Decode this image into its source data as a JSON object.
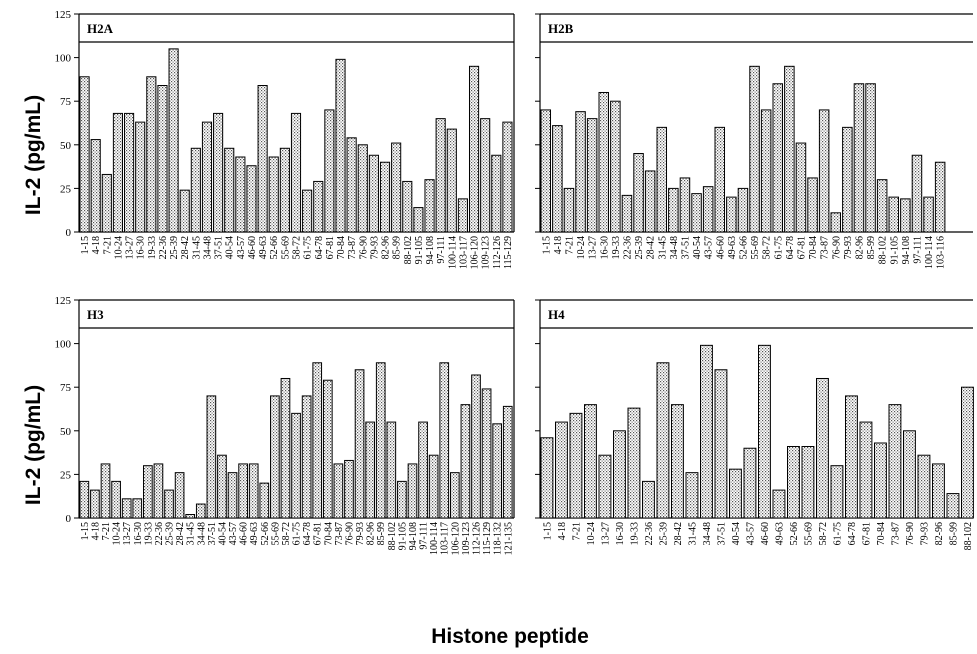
{
  "chart_data": {
    "type": "bar",
    "xlabel": "Histone peptide",
    "ylabel": "IL-2 (pg/mL)",
    "ylim": [
      0,
      125
    ],
    "yticks": [
      0,
      25,
      50,
      75,
      100,
      125
    ],
    "grid": false,
    "panels": [
      {
        "title": "H2A",
        "categories": [
          "1-15",
          "4-18",
          "7-21",
          "10-24",
          "13-27",
          "16-30",
          "19-33",
          "22-36",
          "25-39",
          "28-42",
          "31-45",
          "34-48",
          "37-51",
          "40-54",
          "43-57",
          "46-60",
          "49-63",
          "52-66",
          "55-69",
          "58-72",
          "61-75",
          "64-78",
          "67-81",
          "70-84",
          "73-87",
          "76-90",
          "79-93",
          "82-96",
          "85-99",
          "88-102",
          "91-105",
          "94-108",
          "97-111",
          "100-114",
          "103-117",
          "106-120",
          "109-123",
          "112-126",
          "115-129"
        ],
        "values": [
          89,
          53,
          33,
          68,
          68,
          63,
          89,
          84,
          105,
          24,
          48,
          63,
          68,
          48,
          43,
          38,
          84,
          43,
          48,
          68,
          24,
          29,
          70,
          99,
          54,
          50,
          44,
          40,
          51,
          29,
          14,
          30,
          65,
          59,
          19,
          95,
          65,
          44,
          63
        ]
      },
      {
        "title": "H2B",
        "categories": [
          "1-15",
          "4-18",
          "7-21",
          "10-24",
          "13-27",
          "16-30",
          "19-33",
          "22-36",
          "25-39",
          "28-42",
          "31-45",
          "34-48",
          "37-51",
          "40-54",
          "43-57",
          "46-60",
          "49-63",
          "52-66",
          "55-69",
          "58-72",
          "61-75",
          "64-78",
          "67-81",
          "70-84",
          "73-87",
          "76-90",
          "79-93",
          "82-96",
          "85-99",
          "88-102",
          "91-105",
          "94-108",
          "97-111",
          "100-114",
          "103-116"
        ],
        "values": [
          70,
          61,
          25,
          69,
          65,
          80,
          75,
          21,
          45,
          35,
          60,
          25,
          31,
          22,
          26,
          60,
          20,
          25,
          95,
          70,
          85,
          95,
          51,
          31,
          70,
          11,
          60,
          85,
          85,
          30,
          20,
          19,
          44,
          20,
          40
        ]
      },
      {
        "title": "H3",
        "categories": [
          "1-15",
          "4-18",
          "7-21",
          "10-24",
          "13-27",
          "16-30",
          "19-33",
          "22-36",
          "25-39",
          "28-42",
          "31-45",
          "34-48",
          "37-51",
          "40-54",
          "43-57",
          "46-60",
          "49-63",
          "52-66",
          "55-69",
          "58-72",
          "61-75",
          "64-78",
          "67-81",
          "70-84",
          "73-87",
          "76-90",
          "79-93",
          "82-96",
          "85-99",
          "88-102",
          "91-105",
          "94-108",
          "97-111",
          "100-114",
          "103-117",
          "106-120",
          "109-123",
          "112-126",
          "115-129",
          "118-132",
          "121-135"
        ],
        "values": [
          21,
          16,
          31,
          21,
          11,
          11,
          30,
          31,
          16,
          26,
          2,
          8,
          70,
          36,
          26,
          31,
          31,
          20,
          70,
          80,
          60,
          70,
          89,
          79,
          31,
          33,
          85,
          55,
          89,
          55,
          21,
          31,
          55,
          36,
          89,
          26,
          65,
          82,
          74,
          54,
          64
        ]
      },
      {
        "title": "H4",
        "categories": [
          "1-15",
          "4-18",
          "7-21",
          "10-24",
          "13-27",
          "16-30",
          "19-33",
          "22-36",
          "25-39",
          "28-42",
          "31-45",
          "34-48",
          "37-51",
          "40-54",
          "43-57",
          "46-60",
          "49-63",
          "52-66",
          "55-69",
          "58-72",
          "61-75",
          "64-78",
          "67-81",
          "70-84",
          "73-87",
          "76-90",
          "79-93",
          "82-96",
          "85-99",
          "88-102"
        ],
        "values": [
          46,
          55,
          60,
          65,
          36,
          50,
          63,
          21,
          89,
          65,
          26,
          99,
          85,
          28,
          40,
          99,
          16,
          41,
          41,
          80,
          30,
          70,
          55,
          43,
          65,
          50,
          36,
          31,
          14,
          75
        ]
      }
    ]
  }
}
